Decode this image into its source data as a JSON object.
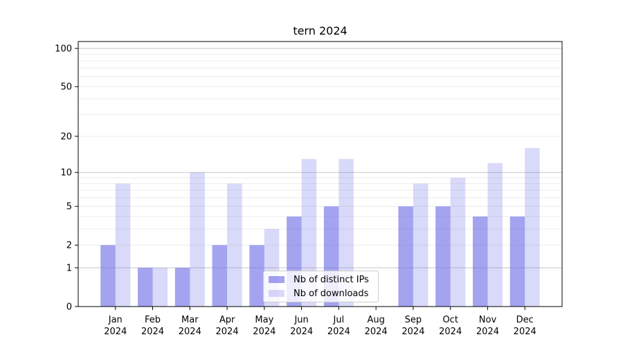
{
  "chart_data": {
    "type": "bar",
    "title": "tern 2024",
    "xlabel": "",
    "ylabel": "",
    "categories": [
      "Jan",
      "Feb",
      "Mar",
      "Apr",
      "May",
      "Jun",
      "Jul",
      "Aug",
      "Sep",
      "Oct",
      "Nov",
      "Dec"
    ],
    "category_year": "2024",
    "series": [
      {
        "name": "Nb of distinct IPs",
        "color": "#6666e6",
        "fill_opacity": 0.6,
        "values": [
          2,
          1,
          1,
          2,
          2,
          4,
          5,
          0,
          5,
          5,
          4,
          4
        ]
      },
      {
        "name": "Nb of downloads",
        "color": "#6666e6",
        "fill_opacity": 0.25,
        "values": [
          8,
          1,
          10,
          8,
          3,
          13,
          13,
          0,
          8,
          9,
          12,
          16
        ]
      }
    ],
    "yscale": "log1p",
    "yticks": [
      0,
      1,
      2,
      5,
      10,
      20,
      50,
      100
    ],
    "major_gridlines": [
      1,
      10,
      100
    ],
    "minor_gridlines": [
      2,
      3,
      4,
      5,
      6,
      7,
      8,
      9,
      20,
      30,
      40,
      50,
      60,
      70,
      80,
      90
    ],
    "ylim": [
      0,
      113
    ],
    "grid": true,
    "legend_position": "lower center",
    "colors": {
      "axis": "#000000",
      "tick_label": "#000000",
      "grid_major": "#c6c6c6",
      "grid_minor": "#ececec"
    }
  }
}
